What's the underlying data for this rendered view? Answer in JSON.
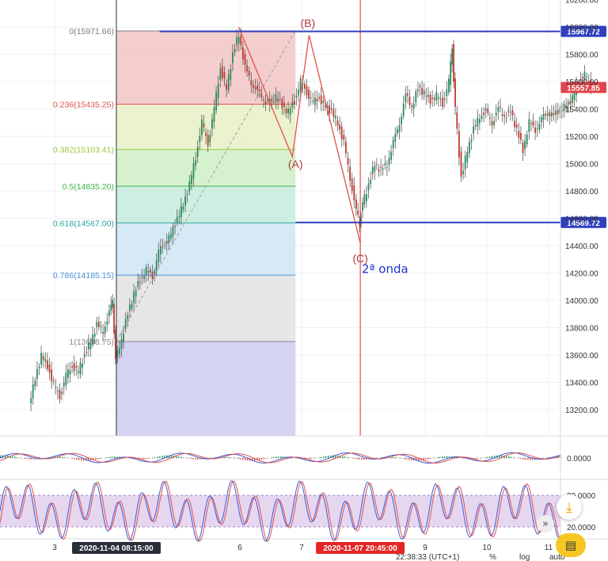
{
  "chart_data": {
    "type": "candlestick",
    "y_range": [
      13100,
      16100
    ],
    "price_ticks": [
      16200,
      16000,
      15800,
      15600,
      15400,
      15200,
      15000,
      14800,
      14600,
      14400,
      14200,
      14000,
      13800,
      13600,
      13400,
      13200
    ],
    "price_tick_labels": [
      "16200.00",
      "16000.00",
      "15800.00",
      "15600.00",
      "15400.00",
      "15200.00",
      "15000.00",
      "14800.00",
      "14600.00",
      "14400.00",
      "14200.00",
      "14000.00",
      "13800.00",
      "13600.00",
      "13400.00",
      "13200.00"
    ],
    "x_ticks": [
      {
        "label": "3",
        "day": 3
      },
      {
        "label": "6",
        "day": 6
      },
      {
        "label": "7",
        "day": 7
      },
      {
        "label": "9",
        "day": 9
      },
      {
        "label": "10",
        "day": 10
      },
      {
        "label": "11",
        "day": 11
      }
    ],
    "x_range_days": [
      2.6,
      11.7
    ],
    "fibonacci": {
      "start_day": 4.0,
      "end_day": 6.9,
      "levels": [
        {
          "ratio_label": "0(15971.66)",
          "price": 15971.66,
          "color": "#7d7d7d",
          "fill": "#f1c6c4"
        },
        {
          "ratio_label": "0.236(15435.25)",
          "price": 15435.25,
          "color": "#e0524b",
          "fill": "#e6f0c6"
        },
        {
          "ratio_label": "0.382(15103.41)",
          "price": 15103.41,
          "color": "#9cc93d",
          "fill": "#cfeec4"
        },
        {
          "ratio_label": "0.5(14835.20)",
          "price": 14835.2,
          "color": "#3eb34a",
          "fill": "#c4ecdc"
        },
        {
          "ratio_label": "0.618(14567.00)",
          "price": 14567.0,
          "color": "#26a89a",
          "fill": "#cfe6f4"
        },
        {
          "ratio_label": "0.786(14185.15)",
          "price": 14185.15,
          "color": "#4a90d9",
          "fill": "#e2e2e2"
        },
        {
          "ratio_label": "1(13698.75)",
          "price": 13698.75,
          "color": "#888888",
          "fill": "#cccbef"
        }
      ]
    },
    "horizontal_lines": [
      {
        "price": 15967.72,
        "label": "15967.72",
        "start_day": 4.7
      },
      {
        "price": 14569.72,
        "label": "14569.72",
        "start_day": 6.9
      }
    ],
    "last_price": {
      "price": 15557.85,
      "label": "15557.85"
    },
    "wave_labels": [
      {
        "text": "(B)",
        "day": 7.1,
        "price": 16000
      },
      {
        "text": "(A)",
        "day": 6.9,
        "price": 14970
      },
      {
        "text": "(C)",
        "day": 7.95,
        "price": 14280
      },
      {
        "text": "2ª onda",
        "day": 8.35,
        "price": 14200
      }
    ],
    "abc_path": [
      {
        "day": 5.98,
        "price": 16000
      },
      {
        "day": 6.85,
        "price": 15050
      },
      {
        "day": 7.12,
        "price": 15940
      },
      {
        "day": 7.95,
        "price": 14420
      }
    ],
    "date_markers": [
      {
        "label": "2020-11-04 08:15:00",
        "day": 4.0,
        "color": "#2a2e39"
      },
      {
        "label": "2020-11-07 20:45:00",
        "day": 7.95,
        "color": "#e32626"
      }
    ],
    "price_series": [
      [
        2.6,
        13250
      ],
      [
        2.7,
        13420
      ],
      [
        2.8,
        13600
      ],
      [
        2.9,
        13520
      ],
      [
        3.0,
        13380
      ],
      [
        3.1,
        13300
      ],
      [
        3.2,
        13450
      ],
      [
        3.3,
        13520
      ],
      [
        3.4,
        13480
      ],
      [
        3.5,
        13600
      ],
      [
        3.6,
        13700
      ],
      [
        3.7,
        13820
      ],
      [
        3.8,
        13780
      ],
      [
        3.9,
        13900
      ],
      [
        3.95,
        14000
      ],
      [
        4.0,
        13560
      ],
      [
        4.1,
        13720
      ],
      [
        4.2,
        13900
      ],
      [
        4.3,
        14050
      ],
      [
        4.4,
        14150
      ],
      [
        4.5,
        14220
      ],
      [
        4.6,
        14180
      ],
      [
        4.7,
        14350
      ],
      [
        4.8,
        14420
      ],
      [
        4.9,
        14480
      ],
      [
        5.0,
        14600
      ],
      [
        5.1,
        14700
      ],
      [
        5.2,
        14850
      ],
      [
        5.3,
        15050
      ],
      [
        5.4,
        15300
      ],
      [
        5.5,
        15150
      ],
      [
        5.6,
        15400
      ],
      [
        5.7,
        15700
      ],
      [
        5.8,
        15550
      ],
      [
        5.9,
        15800
      ],
      [
        6.0,
        15950
      ],
      [
        6.1,
        15700
      ],
      [
        6.2,
        15600
      ],
      [
        6.3,
        15520
      ],
      [
        6.4,
        15480
      ],
      [
        6.5,
        15430
      ],
      [
        6.6,
        15500
      ],
      [
        6.7,
        15420
      ],
      [
        6.8,
        15380
      ],
      [
        6.9,
        15460
      ],
      [
        7.0,
        15600
      ],
      [
        7.1,
        15520
      ],
      [
        7.2,
        15450
      ],
      [
        7.3,
        15480
      ],
      [
        7.4,
        15420
      ],
      [
        7.5,
        15380
      ],
      [
        7.6,
        15300
      ],
      [
        7.7,
        15150
      ],
      [
        7.8,
        14900
      ],
      [
        7.9,
        14650
      ],
      [
        7.95,
        14560
      ],
      [
        8.0,
        14700
      ],
      [
        8.1,
        14850
      ],
      [
        8.2,
        15000
      ],
      [
        8.3,
        14950
      ],
      [
        8.4,
        15000
      ],
      [
        8.5,
        15150
      ],
      [
        8.6,
        15300
      ],
      [
        8.7,
        15500
      ],
      [
        8.8,
        15420
      ],
      [
        8.9,
        15550
      ],
      [
        9.0,
        15520
      ],
      [
        9.1,
        15460
      ],
      [
        9.2,
        15500
      ],
      [
        9.3,
        15440
      ],
      [
        9.4,
        15600
      ],
      [
        9.45,
        15850
      ],
      [
        9.5,
        15400
      ],
      [
        9.6,
        14900
      ],
      [
        9.7,
        15100
      ],
      [
        9.8,
        15250
      ],
      [
        9.9,
        15350
      ],
      [
        10.0,
        15380
      ],
      [
        10.1,
        15300
      ],
      [
        10.2,
        15400
      ],
      [
        10.3,
        15350
      ],
      [
        10.4,
        15380
      ],
      [
        10.5,
        15250
      ],
      [
        10.6,
        15100
      ],
      [
        10.7,
        15300
      ],
      [
        10.8,
        15250
      ],
      [
        10.9,
        15320
      ],
      [
        11.0,
        15380
      ],
      [
        11.1,
        15350
      ],
      [
        11.2,
        15400
      ],
      [
        11.3,
        15420
      ],
      [
        11.4,
        15480
      ],
      [
        11.5,
        15600
      ],
      [
        11.6,
        15650
      ],
      [
        11.7,
        15560
      ]
    ],
    "oscillator_1": {
      "zero_label": "0.0000"
    },
    "oscillator_2": {
      "labels": [
        "80.0000",
        "20.0000"
      ]
    },
    "bottom_time_label": "22:38:33 (UTC+1)",
    "bottom_buttons": [
      "%",
      "log",
      "auto"
    ]
  },
  "ui": {
    "scroll_right_icon": "double-chevron-right-icon",
    "download_icon": "download-icon",
    "chat_icon": "chat-icon",
    "settings_icon": "gear-icon"
  }
}
